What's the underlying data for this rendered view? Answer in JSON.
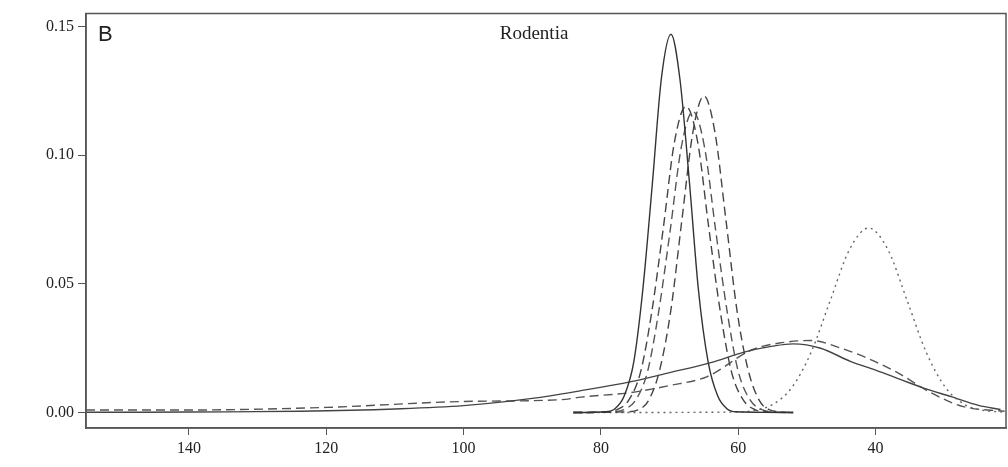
{
  "chart_data": {
    "type": "line",
    "title": "Rodentia",
    "annotations": [
      "B"
    ],
    "xlim": [
      155,
      21
    ],
    "xticks": [
      140,
      120,
      100,
      80,
      60,
      40
    ],
    "ylim": [
      -0.006,
      0.155
    ],
    "yticks": [
      {
        "value": 0,
        "label": "0.00"
      },
      {
        "value": 0.05,
        "label": "0.05"
      },
      {
        "value": 0.1,
        "label": "0.10"
      },
      {
        "value": 0.15,
        "label": "0.15"
      }
    ],
    "grid": false,
    "legend": false,
    "marker": "none",
    "series": [
      {
        "color": "#333333",
        "line_style": "solid",
        "x": [
          84,
          79.3,
          77.9,
          76.6,
          75.2,
          73.9,
          72.5,
          71.2,
          69.8,
          68.5,
          67.1,
          65.8,
          64.4,
          63,
          61.7,
          60.3,
          52
        ],
        "values": [
          0,
          0.0003,
          0.0016,
          0.0065,
          0.0199,
          0.0477,
          0.0892,
          0.1297,
          0.147,
          0.1297,
          0.0892,
          0.0477,
          0.0199,
          0.0065,
          0.0016,
          0.0003,
          0
        ]
      },
      {
        "color": "#444444",
        "line_style": "dashed",
        "x": [
          84,
          76.2,
          74.6,
          73,
          71.4,
          69.8,
          68.2,
          66.6,
          65,
          63.4,
          61.8,
          60.2,
          58.6,
          57,
          55.4,
          53.8,
          52
        ],
        "values": [
          0,
          0.0003,
          0.001,
          0.005,
          0.017,
          0.04,
          0.075,
          0.109,
          0.123,
          0.109,
          0.075,
          0.04,
          0.017,
          0.005,
          0.001,
          0.0003,
          0
        ]
      },
      {
        "color": "#444444",
        "line_style": "dashed",
        "x": [
          84,
          79.2,
          77.5,
          75.9,
          74.2,
          72.6,
          70.9,
          69.3,
          67.6,
          65.9,
          64.3,
          62.6,
          61,
          59.3,
          57.7,
          56,
          52
        ],
        "values": [
          0,
          0.0003,
          0.0013,
          0.005,
          0.016,
          0.039,
          0.072,
          0.105,
          0.119,
          0.105,
          0.072,
          0.039,
          0.016,
          0.005,
          0.0013,
          0.0003,
          0
        ]
      },
      {
        "color": "#555555",
        "line_style": "dashed",
        "x": [
          84,
          78.2,
          76.5,
          74.9,
          73.2,
          71.6,
          69.9,
          68.3,
          66.6,
          64.9,
          63.3,
          61.6,
          60,
          58.3,
          56.7,
          55,
          52
        ],
        "values": [
          0,
          0.0003,
          0.0013,
          0.005,
          0.016,
          0.039,
          0.071,
          0.103,
          0.117,
          0.103,
          0.071,
          0.039,
          0.016,
          0.005,
          0.0013,
          0.0003,
          0
        ]
      },
      {
        "color": "#666666",
        "line_style": "dotted",
        "x": [
          84,
          60.6,
          57.8,
          55,
          52.2,
          49.4,
          46.6,
          43.8,
          41,
          38.2,
          35.4,
          32.6,
          29.8,
          27,
          24.2,
          21.4
        ],
        "values": [
          0,
          0.0002,
          0.0008,
          0.0031,
          0.0097,
          0.0233,
          0.0435,
          0.0633,
          0.0717,
          0.0633,
          0.0435,
          0.0233,
          0.0097,
          0.0031,
          0.0008,
          0.0002
        ]
      },
      {
        "color": "#444444",
        "line_style": "solid",
        "x": [
          155,
          140,
          123.7,
          110,
          100,
          90,
          82.9,
          75.6,
          70,
          64,
          59,
          55,
          52,
          48,
          43.6,
          40,
          36.3,
          33,
          29,
          25,
          21.8
        ],
        "values": [
          0.0001,
          0.0002,
          0.0005,
          0.0014,
          0.0027,
          0.0055,
          0.0085,
          0.012,
          0.0155,
          0.0194,
          0.0236,
          0.0258,
          0.0267,
          0.025,
          0.0198,
          0.0165,
          0.0128,
          0.0095,
          0.0062,
          0.0028,
          0.0012
        ]
      },
      {
        "color": "#555555",
        "line_style": "dashed",
        "x": [
          155,
          140,
          120,
          100,
          85.8,
          82.9,
          75.6,
          70,
          64.5,
          58,
          54,
          49.4,
          45,
          41.7,
          36.8,
          32,
          27.2,
          21.2
        ],
        "values": [
          0.001,
          0.001,
          0.002,
          0.0043,
          0.005,
          0.006,
          0.0078,
          0.0105,
          0.014,
          0.0244,
          0.027,
          0.028,
          0.025,
          0.0217,
          0.0155,
          0.0078,
          0.0023,
          0.0005
        ]
      }
    ]
  }
}
